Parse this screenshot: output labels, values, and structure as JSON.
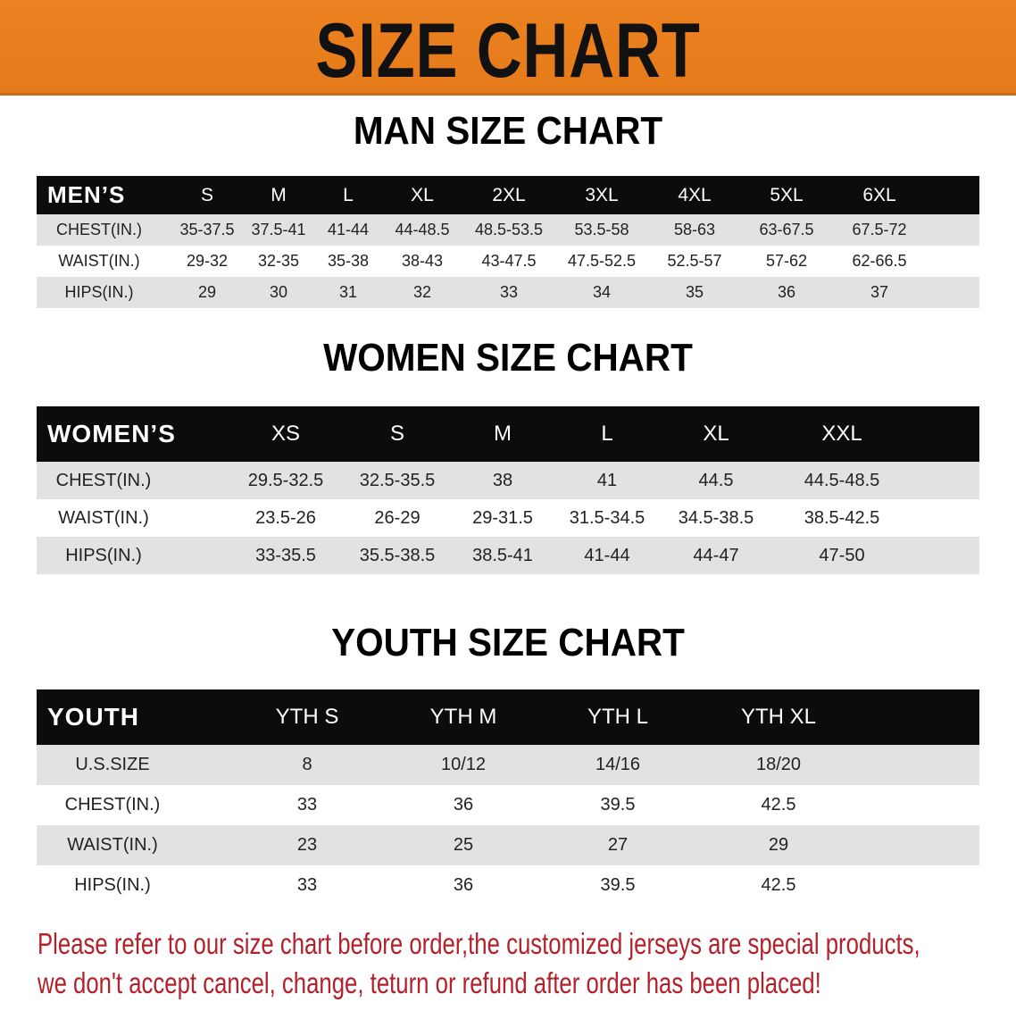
{
  "banner": {
    "title": "SIZE CHART",
    "color": "#ea7d1f"
  },
  "men": {
    "title": "MAN SIZE CHART",
    "header_label": "MEN’S",
    "sizes": [
      "S",
      "M",
      "L",
      "XL",
      "2XL",
      "3XL",
      "4XL",
      "5XL",
      "6XL"
    ],
    "rows": [
      {
        "label": "CHEST(IN.)",
        "values": [
          "35-37.5",
          "37.5-41",
          "41-44",
          "44-48.5",
          "48.5-53.5",
          "53.5-58",
          "58-63",
          "63-67.5",
          "67.5-72"
        ]
      },
      {
        "label": "WAIST(IN.)",
        "values": [
          "29-32",
          "32-35",
          "35-38",
          "38-43",
          "43-47.5",
          "47.5-52.5",
          "52.5-57",
          "57-62",
          "62-66.5"
        ]
      },
      {
        "label": "HIPS(IN.)",
        "values": [
          "29",
          "30",
          "31",
          "32",
          "33",
          "34",
          "35",
          "36",
          "37"
        ]
      }
    ]
  },
  "women": {
    "title": "WOMEN SIZE CHART",
    "header_label": "WOMEN’S",
    "sizes": [
      "XS",
      "S",
      "M",
      "L",
      "XL",
      "XXL"
    ],
    "rows": [
      {
        "label": "CHEST(IN.)",
        "values": [
          "29.5-32.5",
          "32.5-35.5",
          "38",
          "41",
          "44.5",
          "44.5-48.5"
        ]
      },
      {
        "label": "WAIST(IN.)",
        "values": [
          "23.5-26",
          "26-29",
          "29-31.5",
          "31.5-34.5",
          "34.5-38.5",
          "38.5-42.5"
        ]
      },
      {
        "label": "HIPS(IN.)",
        "values": [
          "33-35.5",
          "35.5-38.5",
          "38.5-41",
          "41-44",
          "44-47",
          "47-50"
        ]
      }
    ]
  },
  "youth": {
    "title": "YOUTH SIZE CHART",
    "header_label": "YOUTH",
    "sizes": [
      "YTH S",
      "YTH M",
      "YTH L",
      "YTH XL"
    ],
    "rows": [
      {
        "label": "U.S.SIZE",
        "values": [
          "8",
          "10/12",
          "14/16",
          "18/20"
        ]
      },
      {
        "label": "CHEST(IN.)",
        "values": [
          "33",
          "36",
          "39.5",
          "42.5"
        ]
      },
      {
        "label": "WAIST(IN.)",
        "values": [
          "23",
          "25",
          "27",
          "29"
        ]
      },
      {
        "label": "HIPS(IN.)",
        "values": [
          "33",
          "36",
          "39.5",
          "42.5"
        ]
      }
    ]
  },
  "footer": {
    "line1": "Please refer to our size chart before order,the customized jerseys are special products,",
    "line2": "we don't accept cancel, change, teturn or refund after order has been placed!",
    "color": "#b3222b"
  }
}
